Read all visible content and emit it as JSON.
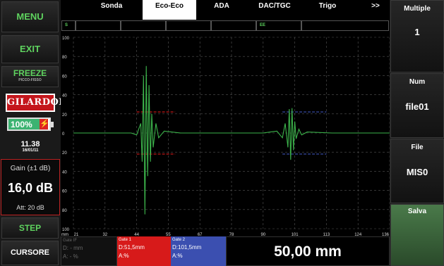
{
  "left_panel": {
    "menu": "MENU",
    "exit": "EXIT",
    "freeze": "FREEZE",
    "freeze_sub": "PICCO-FISSO",
    "logo": "GILARDONI",
    "battery": {
      "text": "100%",
      "level_percent": 100
    },
    "time": "11.38",
    "date": "16/01/11",
    "gain_title": "Gain (±1 dB)",
    "gain_value": "16,0 dB",
    "att": "Att: 20 dB",
    "step": "STEP",
    "cursore": "CURSORE"
  },
  "tabs": [
    {
      "label": "Sonda",
      "active": false
    },
    {
      "label": "Eco-Eco",
      "active": true
    },
    {
      "label": "ADA",
      "active": false
    },
    {
      "label": "DAC/TGC",
      "active": false
    },
    {
      "label": "Trigo",
      "active": false
    },
    {
      "label": ">>",
      "active": false
    }
  ],
  "status_row": [
    "S",
    "",
    "",
    "",
    "",
    "EE",
    ""
  ],
  "chart_data": {
    "type": "line",
    "y_ticks": [
      "100",
      "80",
      "60",
      "40",
      "20",
      "0",
      "20",
      "40",
      "60",
      "80",
      "100"
    ],
    "x_unit": "mm",
    "x_ticks": [
      "21",
      "32",
      "44",
      "55",
      "67",
      "78",
      "90",
      "101",
      "113",
      "124",
      "136"
    ],
    "xlim": [
      21,
      136
    ],
    "ylim": [
      -100,
      100
    ],
    "grid": true,
    "series": [
      {
        "color": "#3cb44b",
        "x": [
          21,
          42,
          44,
          45.5,
          46,
          46.5,
          47,
          47.5,
          48,
          48.5,
          49,
          49.5,
          50,
          51,
          52,
          54,
          60,
          78,
          90,
          95,
          97,
          98,
          99,
          99.5,
          100,
          100.5,
          101,
          101.5,
          102,
          103,
          104,
          106,
          115,
          136
        ],
        "y": [
          0,
          0,
          -2,
          10,
          -30,
          60,
          -85,
          70,
          -45,
          50,
          -30,
          20,
          -15,
          10,
          -5,
          2,
          0,
          0,
          0,
          2,
          -5,
          10,
          -15,
          25,
          -28,
          26,
          -18,
          12,
          -6,
          4,
          -2,
          1,
          0,
          0
        ]
      }
    ],
    "gates": [
      {
        "name": "Gate 1",
        "color": "#d71a1a",
        "x_start": 44,
        "x_end": 58,
        "level_pos": 22,
        "level_neg": -22
      },
      {
        "name": "Gate 2",
        "color": "#3b4fb0",
        "x_start": 97,
        "x_end": 113,
        "level_pos": 22,
        "level_neg": -22
      }
    ]
  },
  "gates": [
    {
      "name": "Gate IF",
      "d": "D: - mm",
      "a": "A: - %"
    },
    {
      "name": "Gate 1",
      "d": "D:51,5mm",
      "a": "A:%"
    },
    {
      "name": "Gate 2",
      "d": "D:101,5mm",
      "a": "A:%"
    }
  ],
  "measure": "50,00 mm",
  "right_panel": [
    {
      "title": "Multiple",
      "value": "1"
    },
    {
      "title": "Num",
      "value": "file01"
    },
    {
      "title": "File",
      "value": "MIS0"
    },
    {
      "title": "Salva",
      "value": ""
    }
  ],
  "colors": {
    "trace": "#3cb44b",
    "gate1": "#d71a1a",
    "gate2": "#3b4fb0",
    "accent_green": "#5fd35f"
  }
}
